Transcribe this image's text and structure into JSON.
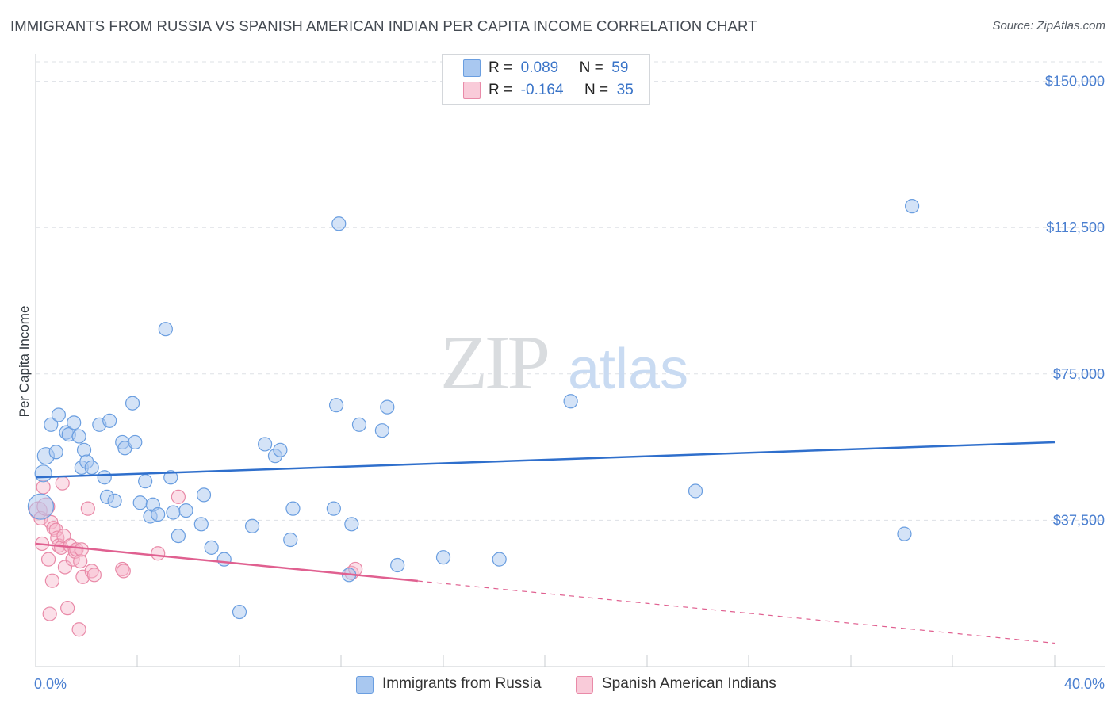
{
  "title": "IMMIGRANTS FROM RUSSIA VS SPANISH AMERICAN INDIAN PER CAPITA INCOME CORRELATION CHART",
  "source": "Source: ZipAtlas.com",
  "watermark": {
    "zip": "ZIP",
    "atlas": "atlas"
  },
  "colors": {
    "blue_fill": "#a9c8f0",
    "blue_stroke": "#6a9ee0",
    "blue_line": "#2f6fcc",
    "pink_fill": "#f6b8cb",
    "pink_stroke": "#e98aa8",
    "pink_line": "#e06090",
    "tick_text": "#4a7fd0",
    "grid": "#dde1e6"
  },
  "legend": {
    "rows": [
      {
        "r_label": "R =",
        "r_value": "0.089",
        "n_label": "N =",
        "n_value": "59"
      },
      {
        "r_label": "R =",
        "r_value": "-0.164",
        "n_label": "N =",
        "n_value": "35"
      }
    ]
  },
  "bottom_legend": [
    "Immigrants from Russia",
    "Spanish American Indians"
  ],
  "chart_data": {
    "type": "scatter",
    "title": "IMMIGRANTS FROM RUSSIA VS SPANISH AMERICAN INDIAN PER CAPITA INCOME CORRELATION CHART",
    "xlabel": "",
    "ylabel": "Per Capita Income",
    "xlim": [
      0,
      40
    ],
    "ylim": [
      0,
      155000
    ],
    "x_tick_labels": [
      "0.0%",
      "40.0%"
    ],
    "y_ticks": [
      37500,
      75000,
      112500,
      150000
    ],
    "y_tick_labels": [
      "$37,500",
      "$75,000",
      "$112,500",
      "$150,000"
    ],
    "grid": "horizontal dashed",
    "legend_placement": "top-center",
    "series": [
      {
        "name": "Immigrants from Russia",
        "stats": {
          "R": 0.089,
          "N": 59
        },
        "trend": {
          "x0": 0,
          "y0": 48500,
          "x1": 40,
          "y1": 57500,
          "solid_until": 40
        },
        "points": [
          [
            0.2,
            41000
          ],
          [
            0.3,
            49500
          ],
          [
            0.4,
            54000
          ],
          [
            0.6,
            62000
          ],
          [
            0.8,
            55000
          ],
          [
            0.9,
            64500
          ],
          [
            1.2,
            60000
          ],
          [
            1.3,
            59500
          ],
          [
            1.5,
            62500
          ],
          [
            1.7,
            59000
          ],
          [
            1.8,
            51000
          ],
          [
            1.9,
            55500
          ],
          [
            2.0,
            52500
          ],
          [
            2.2,
            51000
          ],
          [
            2.5,
            62000
          ],
          [
            2.7,
            48500
          ],
          [
            2.9,
            63000
          ],
          [
            2.8,
            43500
          ],
          [
            3.1,
            42500
          ],
          [
            3.4,
            57500
          ],
          [
            3.5,
            56000
          ],
          [
            3.8,
            67500
          ],
          [
            3.9,
            57500
          ],
          [
            4.1,
            42000
          ],
          [
            4.3,
            47500
          ],
          [
            4.5,
            38500
          ],
          [
            4.6,
            41500
          ],
          [
            4.8,
            39000
          ],
          [
            5.1,
            86500
          ],
          [
            5.3,
            48500
          ],
          [
            5.4,
            39500
          ],
          [
            5.6,
            33500
          ],
          [
            5.9,
            40000
          ],
          [
            6.5,
            36500
          ],
          [
            6.6,
            44000
          ],
          [
            6.9,
            30500
          ],
          [
            7.4,
            27500
          ],
          [
            8.0,
            14000
          ],
          [
            8.5,
            36000
          ],
          [
            9.0,
            57000
          ],
          [
            9.4,
            54000
          ],
          [
            9.6,
            55500
          ],
          [
            10.0,
            32500
          ],
          [
            10.1,
            40500
          ],
          [
            11.7,
            40500
          ],
          [
            11.8,
            67000
          ],
          [
            11.9,
            113500
          ],
          [
            12.3,
            23500
          ],
          [
            12.4,
            36500
          ],
          [
            12.7,
            62000
          ],
          [
            13.6,
            60500
          ],
          [
            13.8,
            66500
          ],
          [
            14.2,
            26000
          ],
          [
            16.0,
            28000
          ],
          [
            18.2,
            27500
          ],
          [
            21.0,
            68000
          ],
          [
            25.9,
            45000
          ],
          [
            34.1,
            34000
          ],
          [
            34.4,
            118000
          ]
        ]
      },
      {
        "name": "Spanish American Indians",
        "stats": {
          "R": -0.164,
          "N": 35
        },
        "trend": {
          "x0": 0,
          "y0": 31500,
          "x1": 40,
          "y1": 6000,
          "solid_until": 15
        },
        "points": [
          [
            0.1,
            40000
          ],
          [
            0.2,
            38000
          ],
          [
            0.25,
            31500
          ],
          [
            0.3,
            46000
          ],
          [
            0.4,
            41000
          ],
          [
            0.5,
            27500
          ],
          [
            0.55,
            13500
          ],
          [
            0.6,
            37000
          ],
          [
            0.65,
            22000
          ],
          [
            0.7,
            35500
          ],
          [
            0.8,
            35000
          ],
          [
            0.85,
            33000
          ],
          [
            0.9,
            31000
          ],
          [
            1.0,
            30500
          ],
          [
            1.05,
            47000
          ],
          [
            1.1,
            33500
          ],
          [
            1.15,
            25500
          ],
          [
            1.25,
            15000
          ],
          [
            1.35,
            31000
          ],
          [
            1.45,
            27500
          ],
          [
            1.55,
            29500
          ],
          [
            1.6,
            30000
          ],
          [
            1.7,
            9500
          ],
          [
            1.75,
            27000
          ],
          [
            1.8,
            30000
          ],
          [
            1.85,
            23000
          ],
          [
            2.05,
            40500
          ],
          [
            2.2,
            24500
          ],
          [
            2.3,
            23500
          ],
          [
            3.4,
            25000
          ],
          [
            3.45,
            24500
          ],
          [
            4.8,
            29000
          ],
          [
            5.6,
            43500
          ],
          [
            12.4,
            24000
          ],
          [
            12.55,
            25000
          ]
        ]
      }
    ]
  }
}
